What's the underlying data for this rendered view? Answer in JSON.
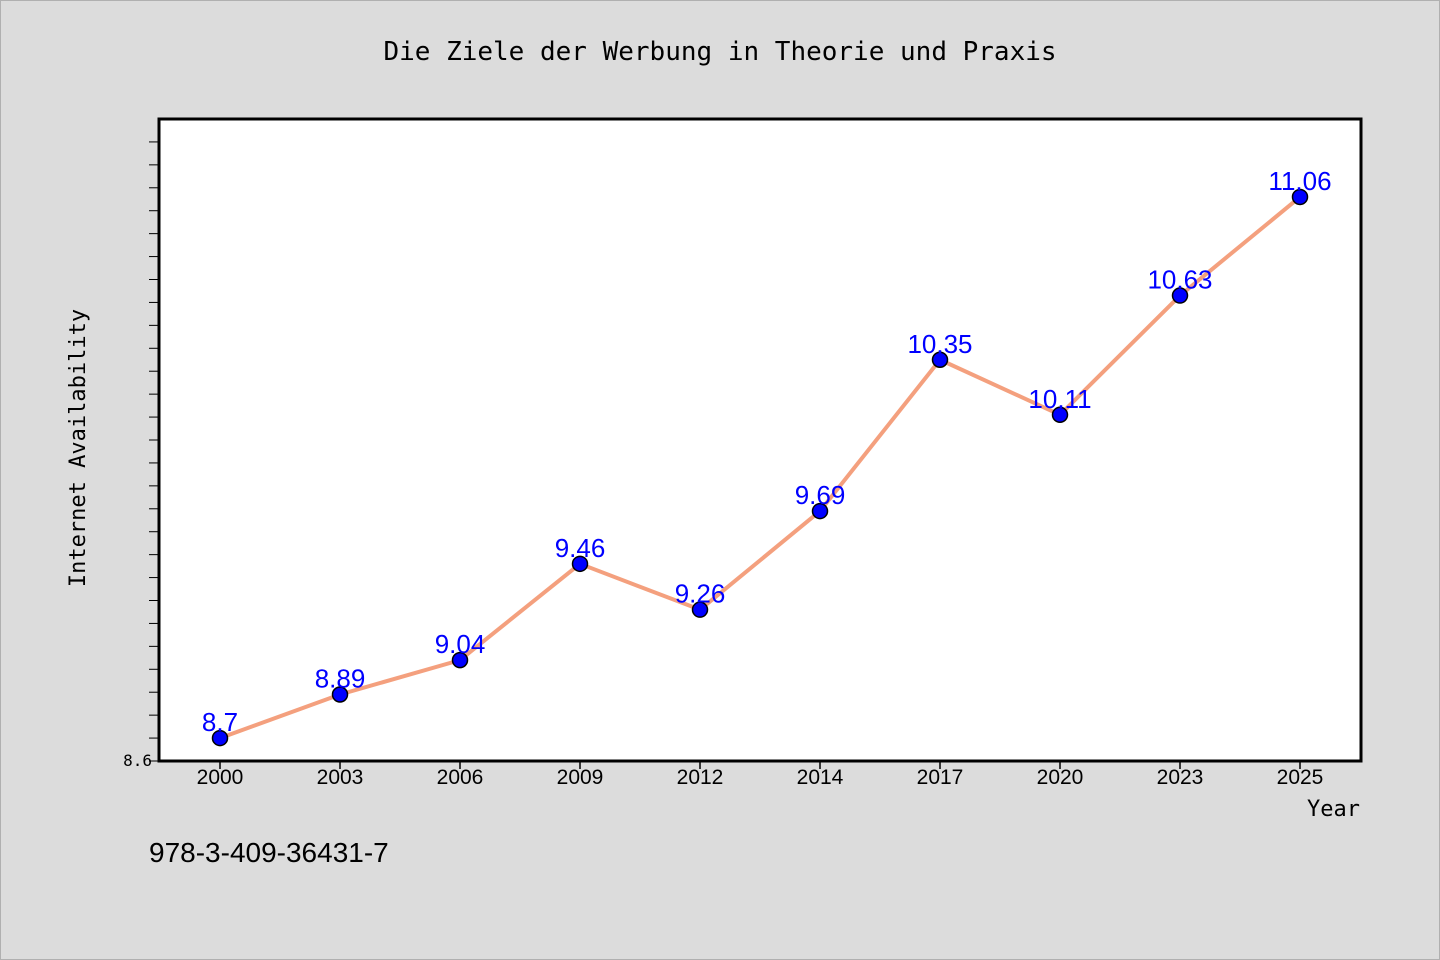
{
  "chart_data": {
    "type": "line",
    "title": "Die Ziele der Werbung in Theorie und Praxis",
    "xlabel": "Year",
    "ylabel": "Internet Availability",
    "categories": [
      "2000",
      "2003",
      "2006",
      "2009",
      "2012",
      "2014",
      "2017",
      "2020",
      "2023",
      "2025"
    ],
    "values": [
      8.7,
      8.89,
      9.04,
      9.46,
      9.26,
      9.69,
      10.35,
      10.11,
      10.63,
      11.06
    ],
    "data_labels": [
      "8.7",
      "8.89",
      "9.04",
      "9.46",
      "9.26",
      "9.69",
      "10.35",
      "10.11",
      "10.63",
      "11.06"
    ],
    "ylim": [
      8.6,
      11.4
    ],
    "y_tick_label": "8.6",
    "grid": false,
    "colors": {
      "line": "#f4a07e",
      "marker": "#0000ff",
      "label": "#0000ff",
      "background": "#dcdcdc",
      "plot_background": "#ffffff"
    }
  },
  "footer": {
    "isbn": "978-3-409-36431-7"
  }
}
